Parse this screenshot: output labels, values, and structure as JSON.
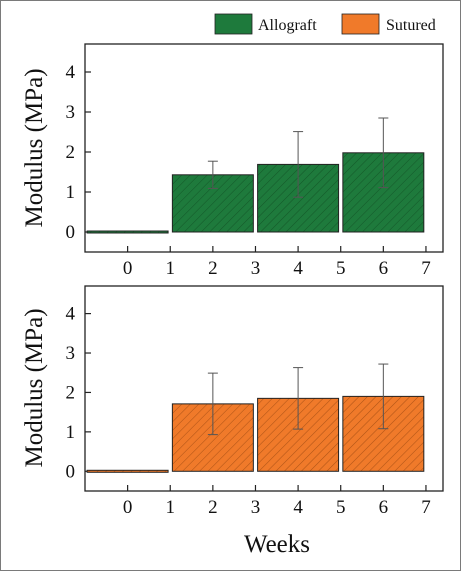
{
  "chart_data": [
    {
      "type": "bar",
      "categories": [
        "0",
        "2",
        "4",
        "6"
      ],
      "series": [
        {
          "name": "Allograft",
          "values": [
            0.0,
            1.43,
            1.69,
            1.98
          ],
          "error": [
            0.0,
            0.34,
            0.82,
            0.87
          ],
          "color": "#1e7a3c"
        }
      ],
      "x_tick_labels": [
        "0",
        "1",
        "2",
        "3",
        "4",
        "5",
        "6",
        "7"
      ],
      "x_tick_values": [
        0,
        1,
        2,
        3,
        4,
        5,
        6,
        7
      ],
      "y_tick_labels": [
        "0",
        "1",
        "2",
        "3",
        "4"
      ],
      "y_tick_values": [
        0,
        1,
        2,
        3,
        4
      ],
      "ylabel": "Modulus (MPa)",
      "xlabel": "",
      "ylim": [
        -0.5,
        4.7
      ],
      "hatch": "diagonal",
      "grid": false,
      "legend_placement": "top"
    },
    {
      "type": "bar",
      "categories": [
        "0",
        "2",
        "4",
        "6"
      ],
      "series": [
        {
          "name": "Sutured",
          "values": [
            0.0,
            1.71,
            1.85,
            1.9
          ],
          "error": [
            0.0,
            0.78,
            0.78,
            0.82
          ],
          "color": "#f07a2a"
        }
      ],
      "x_tick_labels": [
        "0",
        "1",
        "2",
        "3",
        "4",
        "5",
        "6",
        "7"
      ],
      "x_tick_values": [
        0,
        1,
        2,
        3,
        4,
        5,
        6,
        7
      ],
      "y_tick_labels": [
        "0",
        "1",
        "2",
        "3",
        "4"
      ],
      "y_tick_values": [
        0,
        1,
        2,
        3,
        4
      ],
      "ylabel": "Modulus (MPa)",
      "xlabel": "Weeks",
      "ylim": [
        -0.5,
        4.7
      ],
      "hatch": "diagonal",
      "grid": false
    }
  ],
  "legend": [
    {
      "label": "Allograft",
      "color": "#1e7a3c"
    },
    {
      "label": "Sutured",
      "color": "#f07a2a"
    }
  ]
}
